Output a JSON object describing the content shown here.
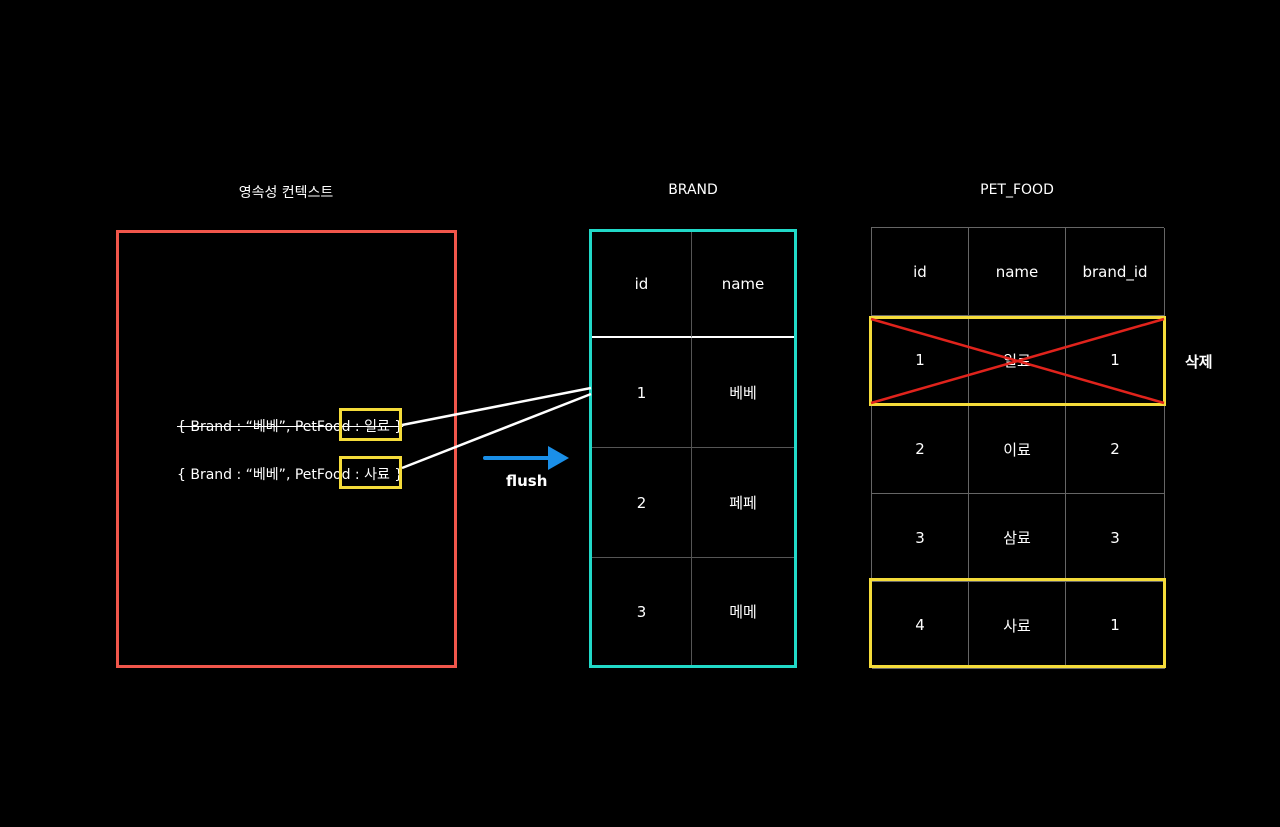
{
  "persistence_context": {
    "title": "영속성 컨텍스트",
    "entities": [
      {
        "text": "{ Brand : “베베”, PetFood : 일료 }",
        "removed": true
      },
      {
        "text": "{ Brand : “베베”, PetFood : 사료 }",
        "removed": false
      }
    ]
  },
  "arrow": {
    "label": "flush"
  },
  "brand_table": {
    "title": "BRAND",
    "columns": [
      "id",
      "name"
    ],
    "rows": [
      [
        "1",
        "베베"
      ],
      [
        "2",
        "페페"
      ],
      [
        "3",
        "메메"
      ]
    ]
  },
  "pet_food_table": {
    "title": "PET_FOOD",
    "columns": [
      "id",
      "name",
      "brand_id"
    ],
    "rows": [
      [
        "1",
        "일료",
        "1"
      ],
      [
        "2",
        "이료",
        "2"
      ],
      [
        "3",
        "삼료",
        "3"
      ],
      [
        "4",
        "사료",
        "1"
      ]
    ],
    "deleted_label": "삭제"
  },
  "colors": {
    "context_border": "#f0564b",
    "brand_border": "#21d9c8",
    "highlight": "#f5dc3a",
    "arrow": "#1a8fe8",
    "cross": "#e0231c"
  }
}
